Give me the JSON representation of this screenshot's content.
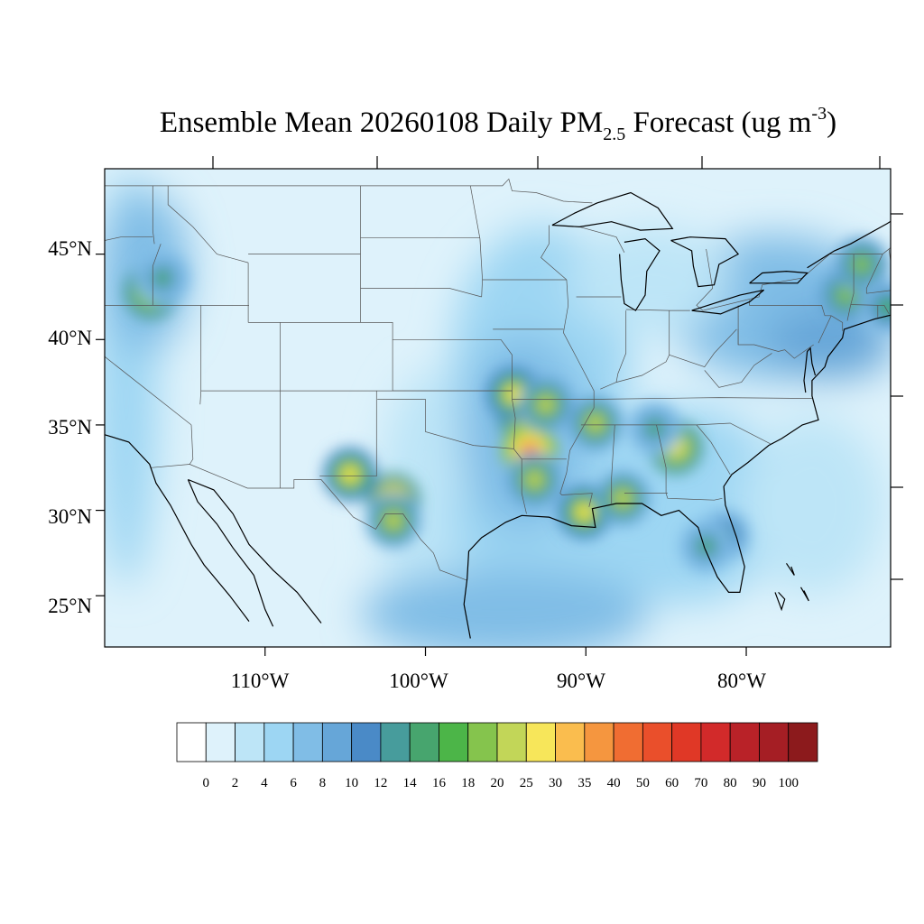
{
  "title": {
    "main": "Ensemble Mean 20260108 Daily PM",
    "sub": "2.5",
    "rest": " Forecast (ug m",
    "sup": "-3",
    "close": ")"
  },
  "lat_labels": [
    "45°N",
    "40°N",
    "35°N",
    "30°N",
    "25°N"
  ],
  "lat_values": [
    45,
    40,
    35,
    30,
    25
  ],
  "lon_labels": [
    "110°W",
    "100°W",
    "90°W",
    "80°W"
  ],
  "lon_values": [
    -110,
    -100,
    -90,
    -80
  ],
  "colorbar": {
    "labels": [
      "0",
      "2",
      "4",
      "6",
      "8",
      "10",
      "12",
      "14",
      "16",
      "18",
      "20",
      "25",
      "30",
      "35",
      "40",
      "50",
      "60",
      "70",
      "80",
      "90",
      "100"
    ],
    "colors": [
      "#ffffff",
      "#def2fb",
      "#bde5f7",
      "#9dd6f3",
      "#80bde6",
      "#66a6d8",
      "#4a8ac7",
      "#479c9c",
      "#47a56e",
      "#4cb548",
      "#85c44d",
      "#c2d658",
      "#f7e65a",
      "#fabd4e",
      "#f5963f",
      "#f06d32",
      "#ea4f2b",
      "#e03826",
      "#d22a2a",
      "#b92228",
      "#a51e24",
      "#8c1a1c"
    ]
  },
  "map": {
    "lon_range": [
      -120,
      -71
    ],
    "lat_range": [
      22,
      50
    ],
    "hotspots": [
      {
        "lon": -93.8,
        "lat": 35.5,
        "value": 28
      },
      {
        "lon": -93.5,
        "lat": 33.5,
        "value": 40
      },
      {
        "lon": -94.5,
        "lat": 36.8,
        "value": 25
      },
      {
        "lon": -93.2,
        "lat": 31.8,
        "value": 22
      },
      {
        "lon": -92.5,
        "lat": 36.2,
        "value": 20
      },
      {
        "lon": -104.7,
        "lat": 32.1,
        "value": 25
      },
      {
        "lon": -102.0,
        "lat": 30.6,
        "value": 30
      },
      {
        "lon": -102.0,
        "lat": 29.4,
        "value": 20
      },
      {
        "lon": -90.1,
        "lat": 29.9,
        "value": 25
      },
      {
        "lon": -84.4,
        "lat": 33.7,
        "value": 28
      },
      {
        "lon": -87.7,
        "lat": 30.7,
        "value": 20
      },
      {
        "lon": -89.4,
        "lat": 35.1,
        "value": 20
      },
      {
        "lon": -81.4,
        "lat": 28.5,
        "value": 16
      },
      {
        "lon": -82.5,
        "lat": 27.9,
        "value": 14
      },
      {
        "lon": -73.8,
        "lat": 42.6,
        "value": 18
      },
      {
        "lon": -72.8,
        "lat": 44.4,
        "value": 18
      },
      {
        "lon": -71.2,
        "lat": 41.9,
        "value": 16
      },
      {
        "lon": -117.1,
        "lat": 42.8,
        "value": 28
      },
      {
        "lon": -116.4,
        "lat": 43.6,
        "value": 14
      },
      {
        "lon": -85.7,
        "lat": 34.8,
        "value": 14
      }
    ]
  }
}
